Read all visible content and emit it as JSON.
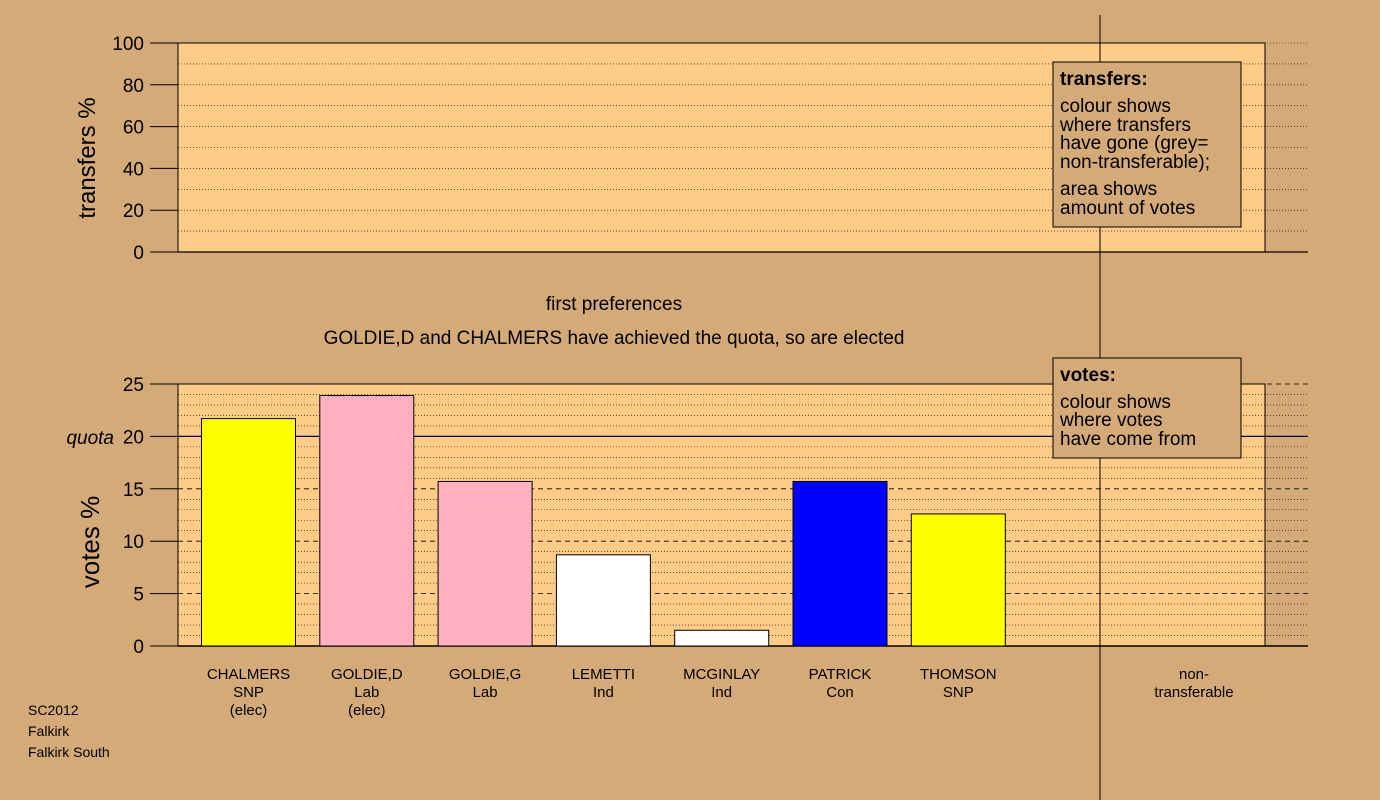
{
  "chart_data": [
    {
      "type": "bar",
      "ylabel": "transfers %",
      "ylim": [
        0,
        100
      ],
      "yticks": [
        0,
        20,
        40,
        60,
        80,
        100
      ],
      "values": [],
      "legend": {
        "title": "transfers:",
        "lines": [
          "colour shows",
          "where transfers",
          "have gone (grey=",
          "non-transferable);",
          "area shows",
          "amount of votes"
        ]
      }
    },
    {
      "type": "bar",
      "title": "first preferences",
      "subtitle": "GOLDIE,D and CHALMERS have achieved the quota, so are elected",
      "ylabel": "votes %",
      "ylim": [
        0,
        25
      ],
      "yticks": [
        0,
        5,
        10,
        15,
        20,
        25
      ],
      "quota": 20,
      "quota_label": "quota",
      "categories": [
        {
          "lines": [
            "CHALMERS",
            "SNP",
            "(elec)"
          ],
          "value": 21.7,
          "color": "#FFFF00"
        },
        {
          "lines": [
            "GOLDIE,D",
            "Lab",
            "(elec)"
          ],
          "value": 23.9,
          "color": "#FFB0C0"
        },
        {
          "lines": [
            "GOLDIE,G",
            "Lab"
          ],
          "value": 15.7,
          "color": "#FFB0C0"
        },
        {
          "lines": [
            "LEMETTI",
            "Ind"
          ],
          "value": 8.7,
          "color": "#FFFFFF"
        },
        {
          "lines": [
            "MCGINLAY",
            "Ind"
          ],
          "value": 1.5,
          "color": "#FFFFFF"
        },
        {
          "lines": [
            "PATRICK",
            "Con"
          ],
          "value": 15.7,
          "color": "#0000FF"
        },
        {
          "lines": [
            "THOMSON",
            "SNP"
          ],
          "value": 12.6,
          "color": "#FFFF00"
        }
      ],
      "nontransferable": {
        "lines": [
          "non-",
          "transferable"
        ],
        "value": 0
      },
      "legend": {
        "title": "votes:",
        "lines": [
          "colour shows",
          "where votes",
          "have come from"
        ]
      }
    }
  ],
  "footer": [
    "SC2012",
    "Falkirk",
    "Falkirk South"
  ],
  "colors": {
    "background": "#D4AA78",
    "plot": "#FFCC88",
    "legend_box": "#D4AA78"
  }
}
